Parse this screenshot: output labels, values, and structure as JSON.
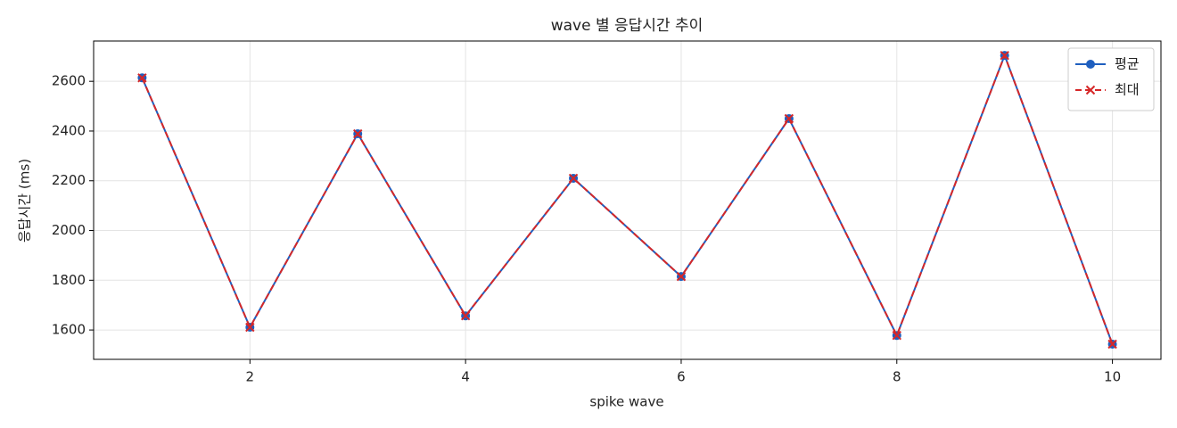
{
  "chart_data": {
    "type": "line",
    "title": "wave 별 응답시간 추이",
    "x_label": "spike wave",
    "y_label": "응답시간 (ms)",
    "x": [
      1,
      2,
      3,
      4,
      5,
      6,
      7,
      8,
      9,
      10
    ],
    "series": [
      {
        "name": "평균",
        "color": "#1f5fbf",
        "linestyle": "solid",
        "marker": "circle",
        "values": [
          2614,
          1611,
          2389,
          1657,
          2210,
          1815,
          2450,
          1578,
          2704,
          1543
        ]
      },
      {
        "name": "최대",
        "color": "#d62728",
        "linestyle": "dashed",
        "marker": "x",
        "values": [
          2614,
          1611,
          2389,
          1657,
          2210,
          1815,
          2450,
          1578,
          2704,
          1543
        ]
      }
    ],
    "xlim": [
      0.55,
      10.45
    ],
    "xticks": [
      2,
      4,
      6,
      8,
      10
    ],
    "ylim": [
      1482,
      2762
    ],
    "yticks": [
      1600,
      1800,
      2000,
      2200,
      2400,
      2600
    ],
    "grid": true,
    "legend": "upper right"
  }
}
